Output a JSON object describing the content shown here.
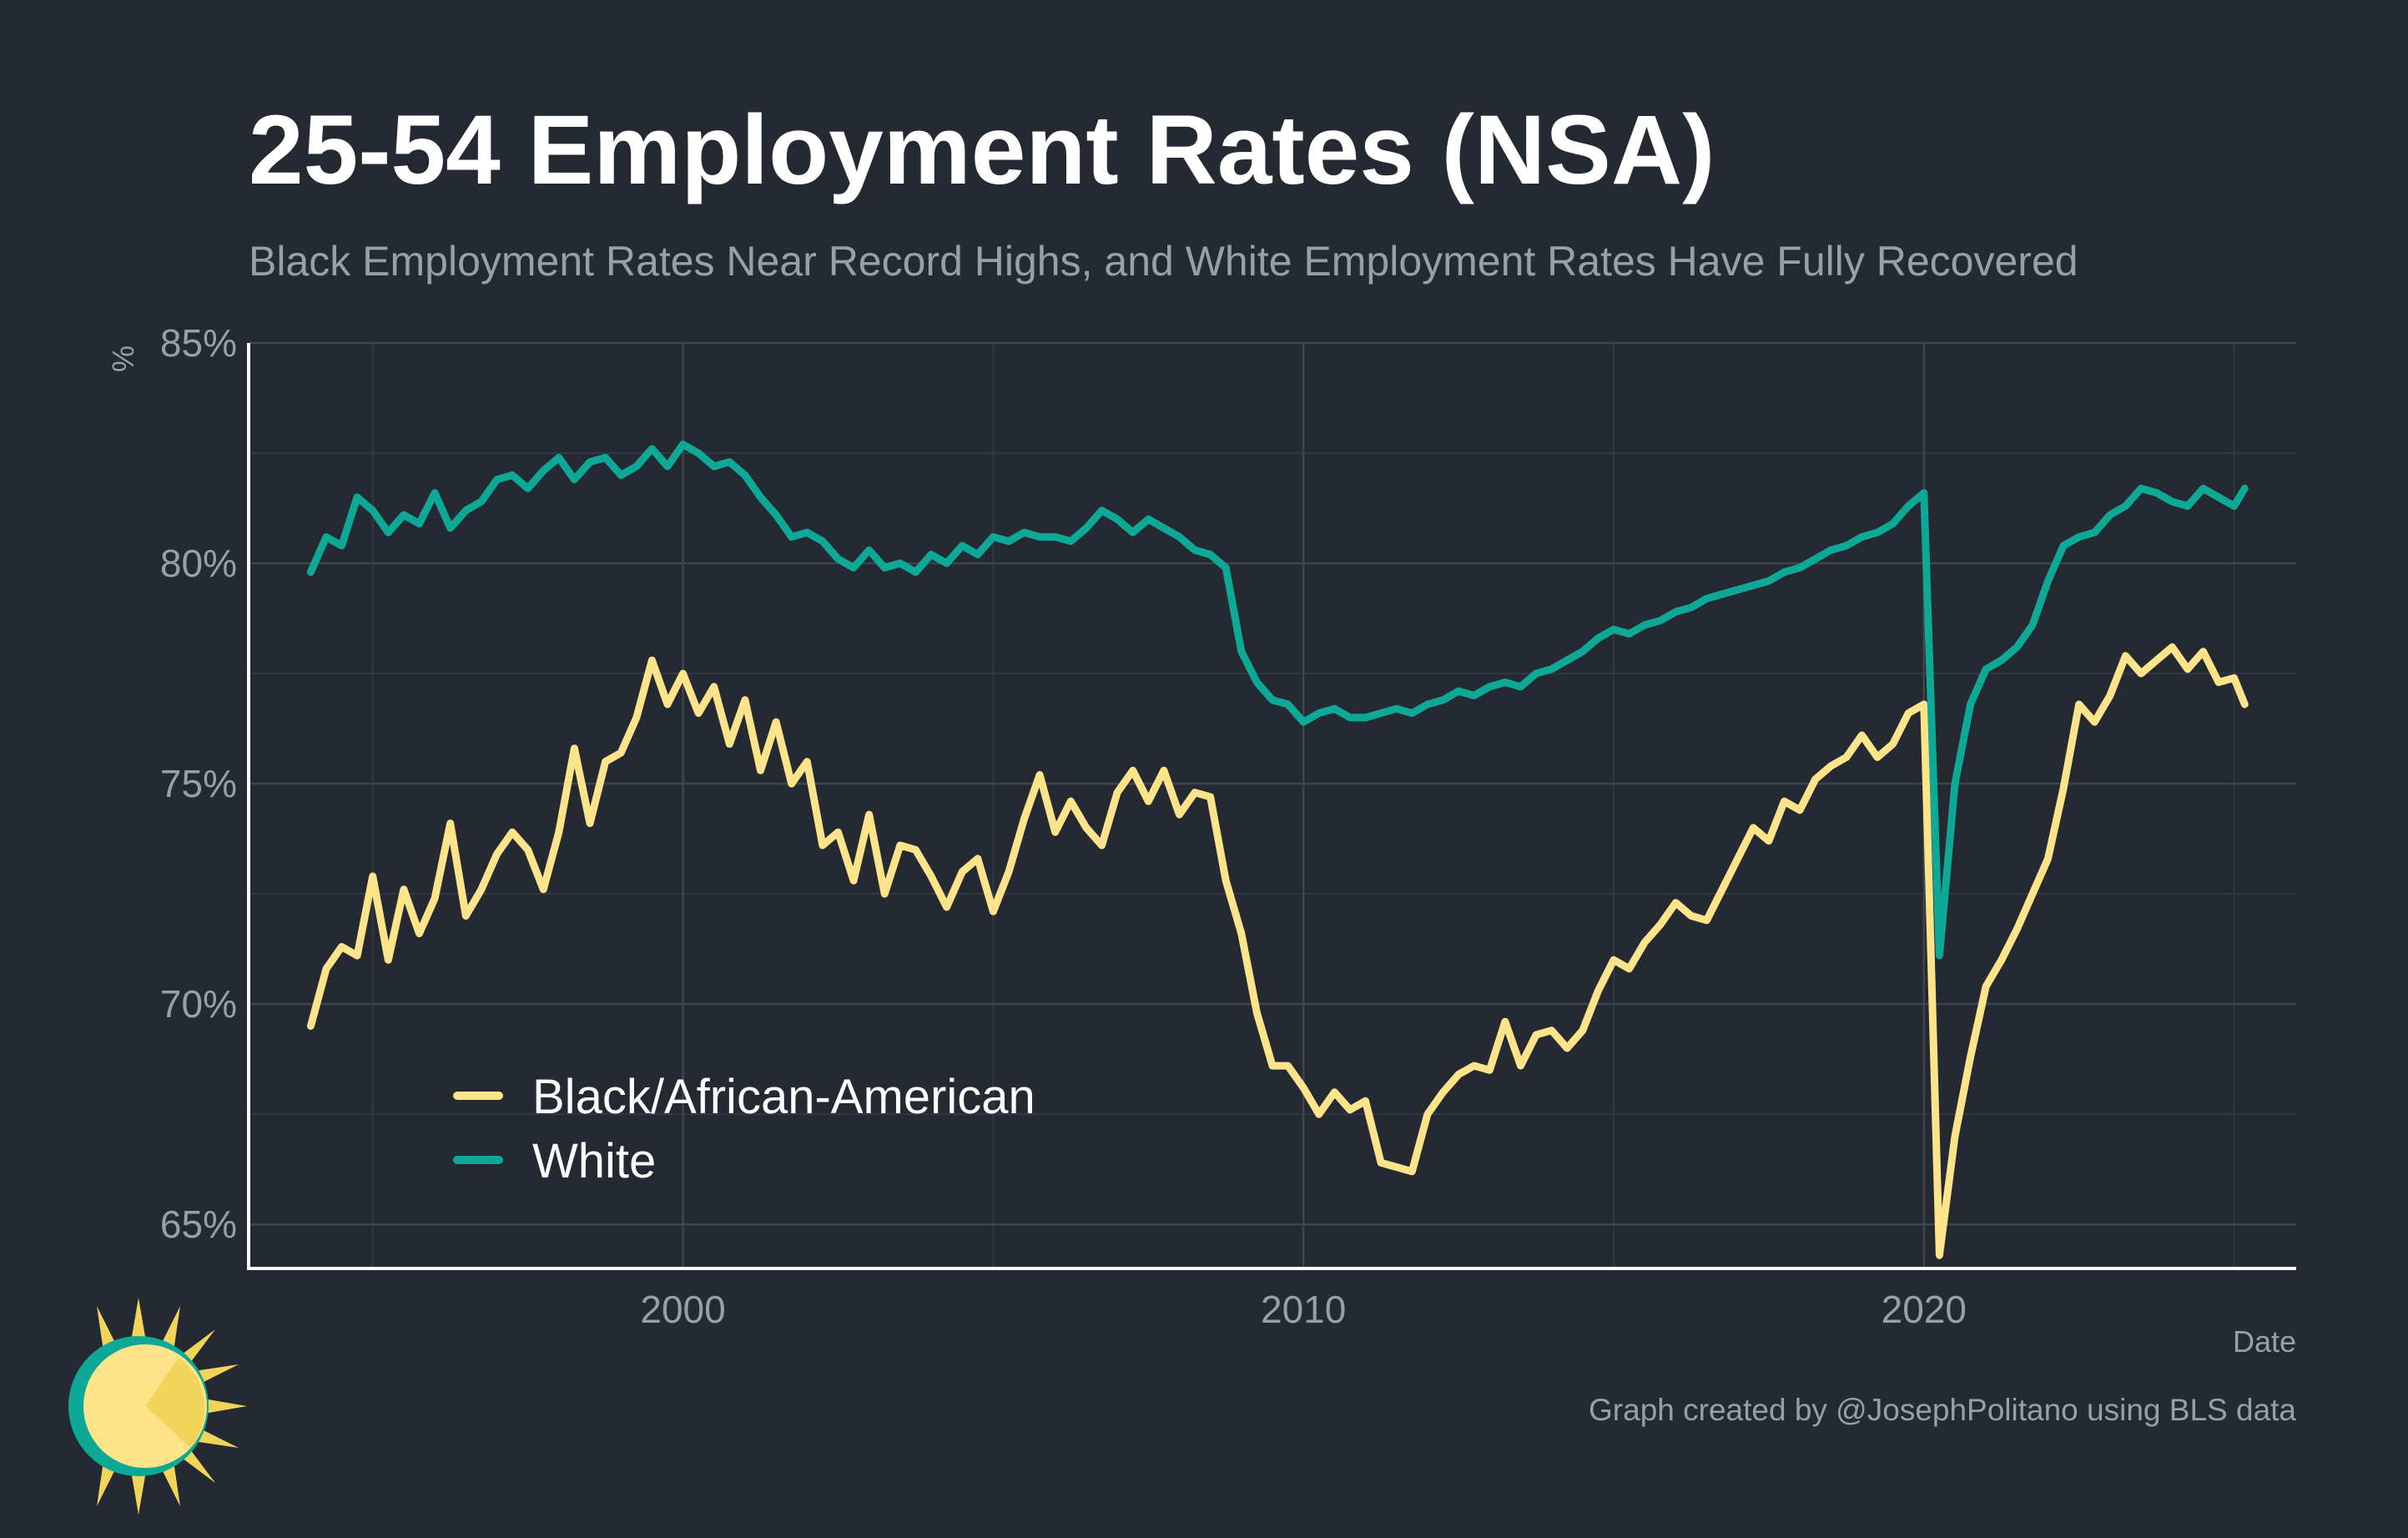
{
  "chart_data": {
    "type": "line",
    "title": "25-54 Employment Rates (NSA)",
    "subtitle": "Black Employment Rates Near Record Highs, and White Employment Rates Have Fully Recovered",
    "xlabel": "Date",
    "ylabel": "%",
    "xlim": [
      1993,
      2026
    ],
    "ylim": [
      64,
      85
    ],
    "x_ticks": [
      2000,
      2010,
      2020
    ],
    "x_tick_labels": [
      "2000",
      "2010",
      "2020"
    ],
    "y_ticks": [
      65,
      70,
      75,
      80,
      85
    ],
    "y_tick_labels": [
      "65%",
      "70%",
      "75%",
      "80%",
      "85%"
    ],
    "grid": true,
    "legend_position": "bottom-left",
    "caption": "Graph created by @JosephPolitano using BLS data",
    "colors": {
      "background": "#252931",
      "grid": "#3f444d",
      "axis": "#ffffff",
      "black_series": "#fde48b",
      "white_series": "#0ea996",
      "muted_text": "#9a9ea6"
    },
    "series": [
      {
        "name": "Black/African-American",
        "color": "#fde48b",
        "points": [
          [
            1994.0,
            69.5
          ],
          [
            1994.25,
            70.8
          ],
          [
            1994.5,
            71.3
          ],
          [
            1994.75,
            71.1
          ],
          [
            1995.0,
            72.9
          ],
          [
            1995.25,
            71.0
          ],
          [
            1995.5,
            72.6
          ],
          [
            1995.75,
            71.6
          ],
          [
            1996.0,
            72.4
          ],
          [
            1996.25,
            74.1
          ],
          [
            1996.5,
            72.0
          ],
          [
            1996.75,
            72.6
          ],
          [
            1997.0,
            73.4
          ],
          [
            1997.25,
            73.9
          ],
          [
            1997.5,
            73.5
          ],
          [
            1997.75,
            72.6
          ],
          [
            1998.0,
            73.9
          ],
          [
            1998.25,
            75.8
          ],
          [
            1998.5,
            74.1
          ],
          [
            1998.75,
            75.5
          ],
          [
            1999.0,
            75.7
          ],
          [
            1999.25,
            76.5
          ],
          [
            1999.5,
            77.8
          ],
          [
            1999.75,
            76.8
          ],
          [
            2000.0,
            77.5
          ],
          [
            2000.25,
            76.6
          ],
          [
            2000.5,
            77.2
          ],
          [
            2000.75,
            75.9
          ],
          [
            2001.0,
            76.9
          ],
          [
            2001.25,
            75.3
          ],
          [
            2001.5,
            76.4
          ],
          [
            2001.75,
            75.0
          ],
          [
            2002.0,
            75.5
          ],
          [
            2002.25,
            73.6
          ],
          [
            2002.5,
            73.9
          ],
          [
            2002.75,
            72.8
          ],
          [
            2003.0,
            74.3
          ],
          [
            2003.25,
            72.5
          ],
          [
            2003.5,
            73.6
          ],
          [
            2003.75,
            73.5
          ],
          [
            2004.0,
            72.9
          ],
          [
            2004.25,
            72.2
          ],
          [
            2004.5,
            73.0
          ],
          [
            2004.75,
            73.3
          ],
          [
            2005.0,
            72.1
          ],
          [
            2005.25,
            73.0
          ],
          [
            2005.5,
            74.2
          ],
          [
            2005.75,
            75.2
          ],
          [
            2006.0,
            73.9
          ],
          [
            2006.25,
            74.6
          ],
          [
            2006.5,
            74.0
          ],
          [
            2006.75,
            73.6
          ],
          [
            2007.0,
            74.8
          ],
          [
            2007.25,
            75.3
          ],
          [
            2007.5,
            74.6
          ],
          [
            2007.75,
            75.3
          ],
          [
            2008.0,
            74.3
          ],
          [
            2008.25,
            74.8
          ],
          [
            2008.5,
            74.7
          ],
          [
            2008.75,
            72.8
          ],
          [
            2009.0,
            71.6
          ],
          [
            2009.25,
            69.8
          ],
          [
            2009.5,
            68.6
          ],
          [
            2009.75,
            68.6
          ],
          [
            2010.0,
            68.1
          ],
          [
            2010.25,
            67.5
          ],
          [
            2010.5,
            68.0
          ],
          [
            2010.75,
            67.6
          ],
          [
            2011.0,
            67.8
          ],
          [
            2011.25,
            66.4
          ],
          [
            2011.5,
            66.3
          ],
          [
            2011.75,
            66.2
          ],
          [
            2012.0,
            67.5
          ],
          [
            2012.25,
            68.0
          ],
          [
            2012.5,
            68.4
          ],
          [
            2012.75,
            68.6
          ],
          [
            2013.0,
            68.5
          ],
          [
            2013.25,
            69.6
          ],
          [
            2013.5,
            68.6
          ],
          [
            2013.75,
            69.3
          ],
          [
            2014.0,
            69.4
          ],
          [
            2014.25,
            69.0
          ],
          [
            2014.5,
            69.4
          ],
          [
            2014.75,
            70.3
          ],
          [
            2015.0,
            71.0
          ],
          [
            2015.25,
            70.8
          ],
          [
            2015.5,
            71.4
          ],
          [
            2015.75,
            71.8
          ],
          [
            2016.0,
            72.3
          ],
          [
            2016.25,
            72.0
          ],
          [
            2016.5,
            71.9
          ],
          [
            2016.75,
            72.6
          ],
          [
            2017.0,
            73.3
          ],
          [
            2017.25,
            74.0
          ],
          [
            2017.5,
            73.7
          ],
          [
            2017.75,
            74.6
          ],
          [
            2018.0,
            74.4
          ],
          [
            2018.25,
            75.1
          ],
          [
            2018.5,
            75.4
          ],
          [
            2018.75,
            75.6
          ],
          [
            2019.0,
            76.1
          ],
          [
            2019.25,
            75.6
          ],
          [
            2019.5,
            75.9
          ],
          [
            2019.75,
            76.6
          ],
          [
            2020.0,
            76.8
          ],
          [
            2020.25,
            64.3
          ],
          [
            2020.5,
            67.0
          ],
          [
            2020.75,
            68.8
          ],
          [
            2021.0,
            70.4
          ],
          [
            2021.25,
            71.0
          ],
          [
            2021.5,
            71.7
          ],
          [
            2021.75,
            72.5
          ],
          [
            2022.0,
            73.3
          ],
          [
            2022.25,
            74.9
          ],
          [
            2022.5,
            76.8
          ],
          [
            2022.75,
            76.4
          ],
          [
            2023.0,
            77.0
          ],
          [
            2023.25,
            77.9
          ],
          [
            2023.5,
            77.5
          ],
          [
            2023.75,
            77.8
          ],
          [
            2024.0,
            78.1
          ],
          [
            2024.25,
            77.6
          ],
          [
            2024.5,
            78.0
          ],
          [
            2024.75,
            77.3
          ],
          [
            2025.0,
            77.4
          ],
          [
            2025.17,
            76.8
          ]
        ]
      },
      {
        "name": "White",
        "color": "#0ea996",
        "points": [
          [
            1994.0,
            79.8
          ],
          [
            1994.25,
            80.6
          ],
          [
            1994.5,
            80.4
          ],
          [
            1994.75,
            81.5
          ],
          [
            1995.0,
            81.2
          ],
          [
            1995.25,
            80.7
          ],
          [
            1995.5,
            81.1
          ],
          [
            1995.75,
            80.9
          ],
          [
            1996.0,
            81.6
          ],
          [
            1996.25,
            80.8
          ],
          [
            1996.5,
            81.2
          ],
          [
            1996.75,
            81.4
          ],
          [
            1997.0,
            81.9
          ],
          [
            1997.25,
            82.0
          ],
          [
            1997.5,
            81.7
          ],
          [
            1997.75,
            82.1
          ],
          [
            1998.0,
            82.4
          ],
          [
            1998.25,
            81.9
          ],
          [
            1998.5,
            82.3
          ],
          [
            1998.75,
            82.4
          ],
          [
            1999.0,
            82.0
          ],
          [
            1999.25,
            82.2
          ],
          [
            1999.5,
            82.6
          ],
          [
            1999.75,
            82.2
          ],
          [
            2000.0,
            82.7
          ],
          [
            2000.25,
            82.5
          ],
          [
            2000.5,
            82.2
          ],
          [
            2000.75,
            82.3
          ],
          [
            2001.0,
            82.0
          ],
          [
            2001.25,
            81.5
          ],
          [
            2001.5,
            81.1
          ],
          [
            2001.75,
            80.6
          ],
          [
            2002.0,
            80.7
          ],
          [
            2002.25,
            80.5
          ],
          [
            2002.5,
            80.1
          ],
          [
            2002.75,
            79.9
          ],
          [
            2003.0,
            80.3
          ],
          [
            2003.25,
            79.9
          ],
          [
            2003.5,
            80.0
          ],
          [
            2003.75,
            79.8
          ],
          [
            2004.0,
            80.2
          ],
          [
            2004.25,
            80.0
          ],
          [
            2004.5,
            80.4
          ],
          [
            2004.75,
            80.2
          ],
          [
            2005.0,
            80.6
          ],
          [
            2005.25,
            80.5
          ],
          [
            2005.5,
            80.7
          ],
          [
            2005.75,
            80.6
          ],
          [
            2006.0,
            80.6
          ],
          [
            2006.25,
            80.5
          ],
          [
            2006.5,
            80.8
          ],
          [
            2006.75,
            81.2
          ],
          [
            2007.0,
            81.0
          ],
          [
            2007.25,
            80.7
          ],
          [
            2007.5,
            81.0
          ],
          [
            2007.75,
            80.8
          ],
          [
            2008.0,
            80.6
          ],
          [
            2008.25,
            80.3
          ],
          [
            2008.5,
            80.2
          ],
          [
            2008.75,
            79.9
          ],
          [
            2009.0,
            78.0
          ],
          [
            2009.25,
            77.3
          ],
          [
            2009.5,
            76.9
          ],
          [
            2009.75,
            76.8
          ],
          [
            2010.0,
            76.4
          ],
          [
            2010.25,
            76.6
          ],
          [
            2010.5,
            76.7
          ],
          [
            2010.75,
            76.5
          ],
          [
            2011.0,
            76.5
          ],
          [
            2011.25,
            76.6
          ],
          [
            2011.5,
            76.7
          ],
          [
            2011.75,
            76.6
          ],
          [
            2012.0,
            76.8
          ],
          [
            2012.25,
            76.9
          ],
          [
            2012.5,
            77.1
          ],
          [
            2012.75,
            77.0
          ],
          [
            2013.0,
            77.2
          ],
          [
            2013.25,
            77.3
          ],
          [
            2013.5,
            77.2
          ],
          [
            2013.75,
            77.5
          ],
          [
            2014.0,
            77.6
          ],
          [
            2014.25,
            77.8
          ],
          [
            2014.5,
            78.0
          ],
          [
            2014.75,
            78.3
          ],
          [
            2015.0,
            78.5
          ],
          [
            2015.25,
            78.4
          ],
          [
            2015.5,
            78.6
          ],
          [
            2015.75,
            78.7
          ],
          [
            2016.0,
            78.9
          ],
          [
            2016.25,
            79.0
          ],
          [
            2016.5,
            79.2
          ],
          [
            2016.75,
            79.3
          ],
          [
            2017.0,
            79.4
          ],
          [
            2017.25,
            79.5
          ],
          [
            2017.5,
            79.6
          ],
          [
            2017.75,
            79.8
          ],
          [
            2018.0,
            79.9
          ],
          [
            2018.25,
            80.1
          ],
          [
            2018.5,
            80.3
          ],
          [
            2018.75,
            80.4
          ],
          [
            2019.0,
            80.6
          ],
          [
            2019.25,
            80.7
          ],
          [
            2019.5,
            80.9
          ],
          [
            2019.75,
            81.3
          ],
          [
            2020.0,
            81.6
          ],
          [
            2020.25,
            71.1
          ],
          [
            2020.5,
            75.0
          ],
          [
            2020.75,
            76.8
          ],
          [
            2021.0,
            77.6
          ],
          [
            2021.25,
            77.8
          ],
          [
            2021.5,
            78.1
          ],
          [
            2021.75,
            78.6
          ],
          [
            2022.0,
            79.6
          ],
          [
            2022.25,
            80.4
          ],
          [
            2022.5,
            80.6
          ],
          [
            2022.75,
            80.7
          ],
          [
            2023.0,
            81.1
          ],
          [
            2023.25,
            81.3
          ],
          [
            2023.5,
            81.7
          ],
          [
            2023.75,
            81.6
          ],
          [
            2024.0,
            81.4
          ],
          [
            2024.25,
            81.3
          ],
          [
            2024.5,
            81.7
          ],
          [
            2024.75,
            81.5
          ],
          [
            2025.0,
            81.3
          ],
          [
            2025.17,
            81.7
          ]
        ]
      }
    ]
  }
}
